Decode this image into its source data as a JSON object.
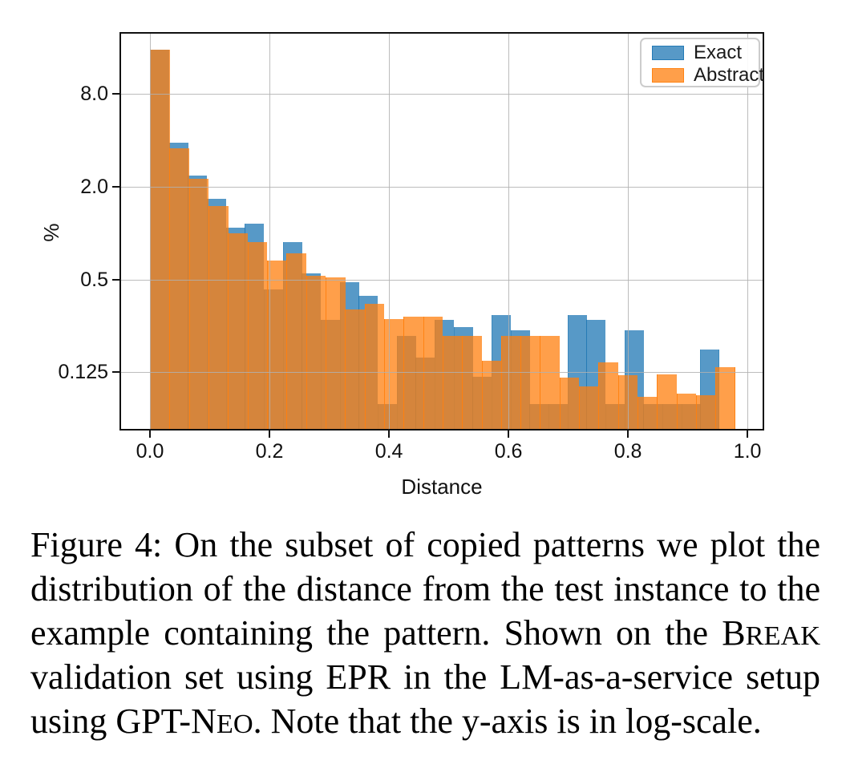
{
  "figure": {
    "caption": {
      "full_text": "Figure 4: On the subset of copied patterns we plot the distribution of the distance from the test instance to the example containing the pattern. Shown on the BREAK validation set using EPR in the LM-as-a-service setup using GPT-NEO. Note that the y-axis is in log-scale.",
      "lines": [
        {
          "segments": [
            {
              "text": "Figure 4: On the subset of copied patterns we plot the"
            }
          ],
          "last": false
        },
        {
          "segments": [
            {
              "text": "distribution of the distance from the test instance to the"
            }
          ],
          "last": false
        },
        {
          "segments": [
            {
              "text": "example containing the pattern. Shown on the B"
            },
            {
              "text": "REAK",
              "smallcaps": true
            }
          ],
          "last": false
        },
        {
          "segments": [
            {
              "text": "validation set using EPR in the LM-as-a-service setup"
            }
          ],
          "last": false
        },
        {
          "segments": [
            {
              "text": "using GPT-N"
            },
            {
              "text": "EO",
              "smallcaps": true
            },
            {
              "text": ". Note that the y-axis is in log-scale."
            }
          ],
          "last": true
        }
      ]
    }
  },
  "chart_data": {
    "type": "bar",
    "subtype": "overlaid-histograms",
    "title": "",
    "xlabel": "Distance",
    "ylabel": "%",
    "yscale": "log",
    "grid": true,
    "xlim": [
      -0.051,
      1.028
    ],
    "ylim": [
      0.0523,
      20.1
    ],
    "x_ticks": {
      "values": [
        0,
        0.2,
        0.4,
        0.6,
        0.8,
        1.0
      ],
      "labels": [
        "0.0",
        "0.2",
        "0.4",
        "0.6",
        "0.8",
        "1.0"
      ]
    },
    "y_ticks": {
      "values": [
        8,
        2,
        0.5,
        0.125
      ],
      "labels": [
        "8.0",
        "2.0",
        "0.5",
        "0.125"
      ]
    },
    "legend": {
      "position": "upper-right",
      "entries": [
        {
          "label": "Exact",
          "color": "#1f77b4"
        },
        {
          "label": "Abstract",
          "color": "#ff7f0e"
        }
      ]
    },
    "bar_alpha": 0.75,
    "series": [
      {
        "name": "Exact",
        "color": "#1f77b4",
        "edge_alpha": 0.45,
        "bin_start": 0.0,
        "bin_width": 0.03176,
        "values_pct": [
          15.5,
          3.84,
          2.35,
          1.67,
          1.08,
          1.15,
          0.43,
          0.87,
          0.547,
          0.273,
          0.478,
          0.39,
          0.078,
          0.215,
          0.155,
          0.273,
          0.245,
          0.117,
          0.295,
          0.233,
          0.078,
          0.078,
          0.295,
          0.273,
          0.078,
          0.233,
          0.078,
          0.078,
          0.078,
          0.176
        ]
      },
      {
        "name": "Abstract",
        "color": "#ff7f0e",
        "edge_alpha": 0.9,
        "bin_start": 0.0,
        "bin_width": 0.03264,
        "values_pct": [
          15.5,
          3.54,
          2.24,
          1.5,
          1.0,
          0.876,
          0.66,
          0.74,
          0.526,
          0.518,
          0.32,
          0.346,
          0.275,
          0.285,
          0.285,
          0.216,
          0.216,
          0.149,
          0.215,
          0.215,
          0.215,
          0.115,
          0.101,
          0.144,
          0.12,
          0.087,
          0.121,
          0.091,
          0.089,
          0.135
        ]
      }
    ]
  }
}
